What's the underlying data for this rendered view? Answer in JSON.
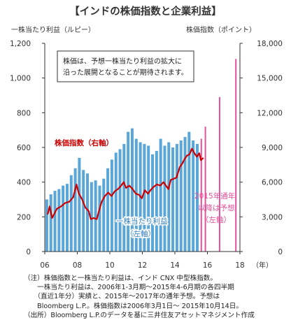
{
  "chart_data": {
    "type": "bar",
    "title": "【インドの株価指数と企業利益】",
    "left_axis_label": "一株当たり利益（ルピー）",
    "right_axis_label": "株価指数（ポイント）",
    "x_unit_label": "（年）",
    "left_ylim": [
      0,
      1200
    ],
    "left_ticks": [
      "0",
      "200",
      "400",
      "600",
      "800",
      "1,000",
      "1,200"
    ],
    "right_ylim": [
      0,
      18000
    ],
    "right_ticks": [
      "0",
      "3,000",
      "6,000",
      "9,000",
      "12,000",
      "15,000",
      "18,000"
    ],
    "x_range": [
      2006,
      2018
    ],
    "x_ticks": [
      "06",
      "08",
      "10",
      "12",
      "14",
      "16",
      "18"
    ],
    "grid": false,
    "series": [
      {
        "name": "一株当たり利益",
        "axis": "left",
        "color": "#5aa6d8",
        "quarters": [
          "2006Q1",
          "2006Q2",
          "2006Q3",
          "2006Q4",
          "2007Q1",
          "2007Q2",
          "2007Q3",
          "2007Q4",
          "2008Q1",
          "2008Q2",
          "2008Q3",
          "2008Q4",
          "2009Q1",
          "2009Q2",
          "2009Q3",
          "2009Q4",
          "2010Q1",
          "2010Q2",
          "2010Q3",
          "2010Q4",
          "2011Q1",
          "2011Q2",
          "2011Q3",
          "2011Q4",
          "2012Q1",
          "2012Q2",
          "2012Q3",
          "2012Q4",
          "2013Q1",
          "2013Q2",
          "2013Q3",
          "2013Q4",
          "2014Q1",
          "2014Q2",
          "2014Q3",
          "2014Q4",
          "2015Q1",
          "2015Q2"
        ],
        "values": [
          300,
          330,
          350,
          360,
          380,
          390,
          440,
          480,
          540,
          470,
          450,
          400,
          410,
          380,
          420,
          480,
          530,
          570,
          590,
          620,
          690,
          710,
          650,
          630,
          620,
          610,
          560,
          580,
          650,
          610,
          630,
          600,
          620,
          640,
          660,
          690,
          640,
          620
        ]
      },
      {
        "name": "株価指数",
        "axis": "right",
        "color": "#cc0000",
        "points": [
          [
            2006.17,
            3200
          ],
          [
            2006.3,
            3900
          ],
          [
            2006.45,
            2900
          ],
          [
            2006.6,
            3300
          ],
          [
            2006.75,
            3700
          ],
          [
            2007.0,
            3900
          ],
          [
            2007.25,
            4200
          ],
          [
            2007.5,
            4300
          ],
          [
            2007.75,
            4700
          ],
          [
            2007.95,
            5800
          ],
          [
            2008.1,
            5000
          ],
          [
            2008.3,
            4500
          ],
          [
            2008.5,
            3800
          ],
          [
            2008.7,
            3500
          ],
          [
            2008.83,
            2800
          ],
          [
            2009.0,
            2900
          ],
          [
            2009.2,
            2800
          ],
          [
            2009.35,
            3600
          ],
          [
            2009.5,
            4300
          ],
          [
            2009.7,
            4800
          ],
          [
            2009.9,
            5100
          ],
          [
            2010.1,
            4800
          ],
          [
            2010.3,
            5200
          ],
          [
            2010.5,
            5400
          ],
          [
            2010.7,
            5700
          ],
          [
            2010.85,
            6000
          ],
          [
            2011.0,
            5500
          ],
          [
            2011.2,
            5700
          ],
          [
            2011.4,
            5400
          ],
          [
            2011.6,
            5000
          ],
          [
            2011.8,
            4900
          ],
          [
            2011.97,
            4600
          ],
          [
            2012.15,
            5300
          ],
          [
            2012.35,
            5000
          ],
          [
            2012.5,
            5300
          ],
          [
            2012.7,
            5600
          ],
          [
            2012.9,
            5800
          ],
          [
            2013.1,
            5700
          ],
          [
            2013.3,
            6000
          ],
          [
            2013.45,
            5700
          ],
          [
            2013.6,
            5400
          ],
          [
            2013.75,
            6200
          ],
          [
            2013.95,
            6300
          ],
          [
            2014.1,
            6400
          ],
          [
            2014.3,
            7300
          ],
          [
            2014.45,
            7600
          ],
          [
            2014.6,
            8000
          ],
          [
            2014.75,
            8300
          ],
          [
            2014.9,
            8400
          ],
          [
            2015.05,
            8900
          ],
          [
            2015.2,
            8500
          ],
          [
            2015.35,
            8200
          ],
          [
            2015.5,
            8500
          ],
          [
            2015.6,
            7900
          ],
          [
            2015.75,
            8100
          ]
        ]
      },
      {
        "name": "予想",
        "axis": "left",
        "color": "#e8509a",
        "forecast": true,
        "quarters": [
          "2015Q3",
          "2015Q4",
          "2016",
          "2017"
        ],
        "values": [
          650,
          720,
          890,
          1110
        ]
      }
    ],
    "annotations": {
      "callout_line1": "株価は、予想一株当たり利益の拡大に",
      "callout_line2": "沿った展開となることが期待されます。",
      "index_label": "株価指数（右軸）",
      "eps_label_line1": "一株当たり利益",
      "eps_label_line2": "（左軸）",
      "forecast_line1": "2015年通年",
      "forecast_line2": "以降は予想",
      "forecast_line3": "（左軸）"
    }
  },
  "notes": [
    "（注）株価指数と一株当たり利益は、インド CNX 中型株指数。",
    "　　一株当たり利益は、2006年1-3月期～2015年4-6月期の各四半期",
    "　　（直近1年分）実績と、2015年～2017年の通年予想。予想は",
    "　　Bloomberg L.P.。株価指数は2006年3月1日～ 2015年10月14日。",
    "（出所）Bloomberg L.P.のデータを基に三井住友アセットマネジメント作成"
  ]
}
